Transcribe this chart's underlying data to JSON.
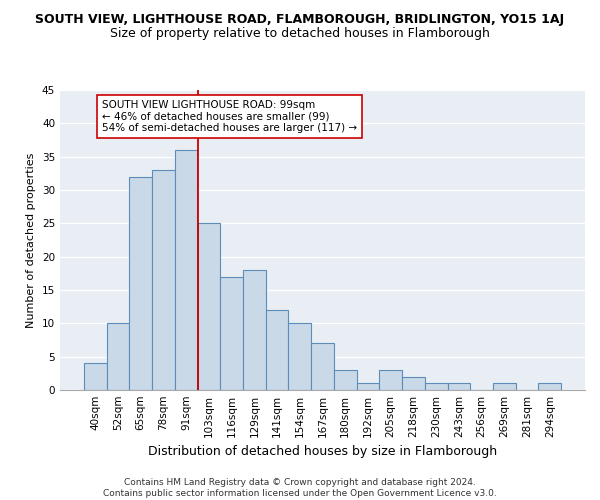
{
  "title": "SOUTH VIEW, LIGHTHOUSE ROAD, FLAMBOROUGH, BRIDLINGTON, YO15 1AJ",
  "subtitle": "Size of property relative to detached houses in Flamborough",
  "xlabel": "Distribution of detached houses by size in Flamborough",
  "ylabel": "Number of detached properties",
  "categories": [
    "40sqm",
    "52sqm",
    "65sqm",
    "78sqm",
    "91sqm",
    "103sqm",
    "116sqm",
    "129sqm",
    "141sqm",
    "154sqm",
    "167sqm",
    "180sqm",
    "192sqm",
    "205sqm",
    "218sqm",
    "230sqm",
    "243sqm",
    "256sqm",
    "269sqm",
    "281sqm",
    "294sqm"
  ],
  "values": [
    4,
    10,
    32,
    33,
    36,
    25,
    17,
    18,
    12,
    10,
    7,
    3,
    1,
    3,
    2,
    1,
    1,
    0,
    1,
    0,
    1
  ],
  "bar_color": "#c9d9e8",
  "bar_edge_color": "#5b8db8",
  "bar_edge_width": 0.8,
  "grid_color": "#cccccc",
  "background_color": "#e8eef4",
  "ylim": [
    0,
    45
  ],
  "yticks": [
    0,
    5,
    10,
    15,
    20,
    25,
    30,
    35,
    40,
    45
  ],
  "vline_x": 4.5,
  "vline_color": "#cc0000",
  "annotation_text": "SOUTH VIEW LIGHTHOUSE ROAD: 99sqm\n← 46% of detached houses are smaller (99)\n54% of semi-detached houses are larger (117) →",
  "annotation_box_color": "#ffffff",
  "annotation_box_edge": "#cc0000",
  "footer": "Contains HM Land Registry data © Crown copyright and database right 2024.\nContains public sector information licensed under the Open Government Licence v3.0.",
  "title_fontsize": 9,
  "subtitle_fontsize": 9,
  "xlabel_fontsize": 9,
  "ylabel_fontsize": 8,
  "tick_fontsize": 7.5,
  "annotation_fontsize": 7.5,
  "footer_fontsize": 6.5
}
